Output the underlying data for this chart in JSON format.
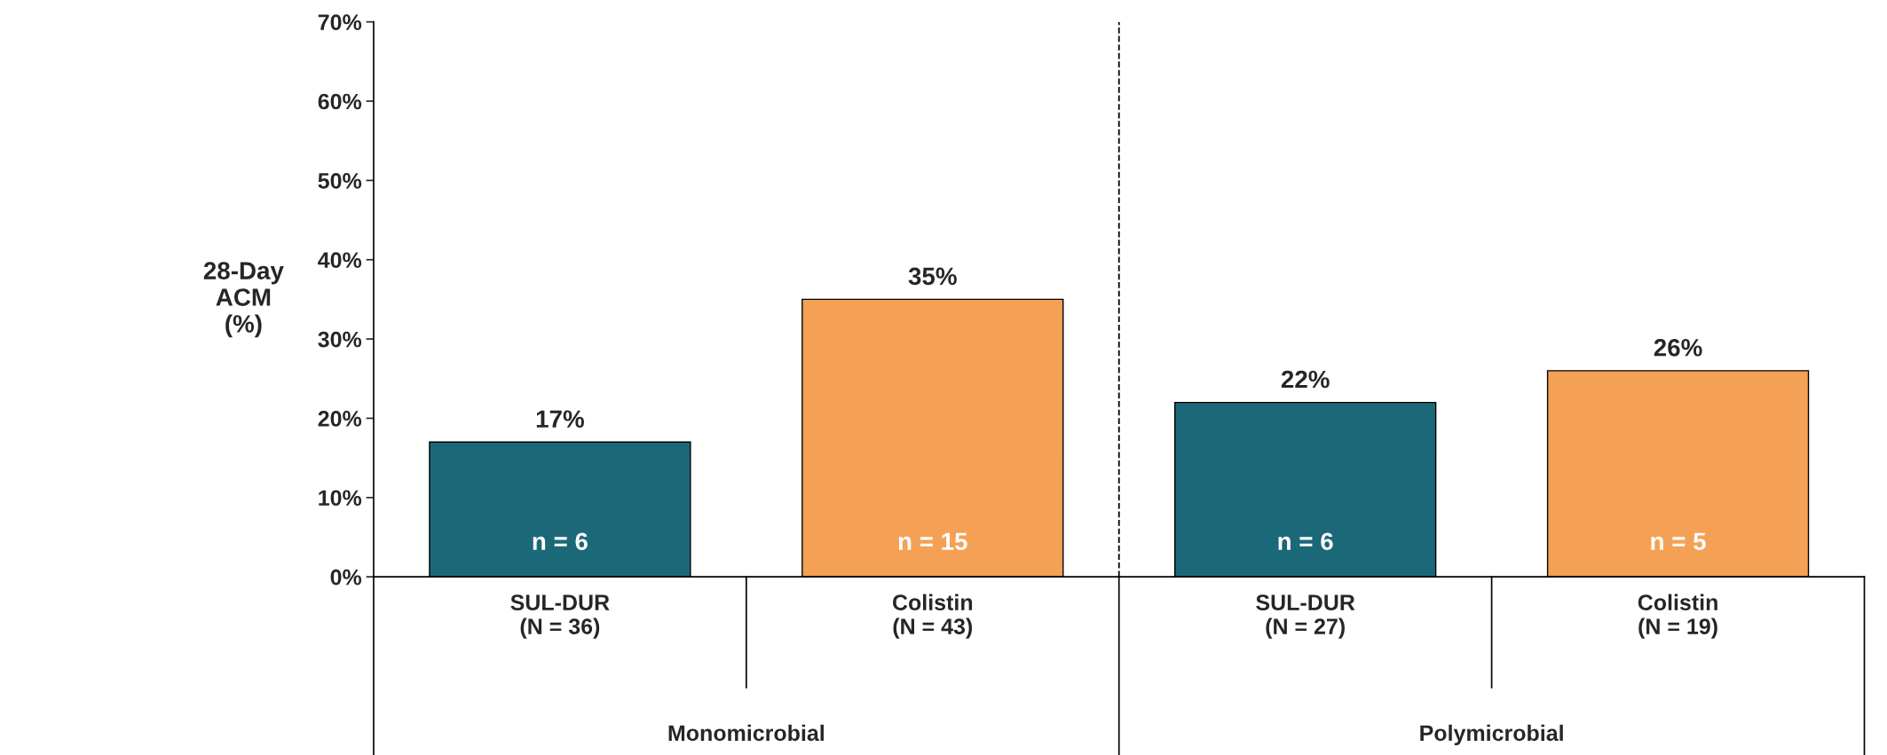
{
  "chart_data": {
    "type": "bar",
    "ylabel": "28-Day\nACM\n(%)",
    "categories": [
      "SUL-DUR\n(N = 36)",
      "Colistin\n(N = 43)",
      "SUL-DUR\n(N = 27)",
      "Colistin\n(N = 19)"
    ],
    "values": [
      17,
      35,
      22,
      26
    ],
    "colors": [
      "#1b6878",
      "#f4a155",
      "#1b6878",
      "#f4a155"
    ],
    "value_labels": [
      "17%",
      "35%",
      "22%",
      "26%"
    ],
    "ylim": [
      0,
      70
    ],
    "yticks": [
      {
        "value": 0,
        "label": "0%"
      },
      {
        "value": 10,
        "label": "10%"
      },
      {
        "value": 20,
        "label": "20%"
      },
      {
        "value": 30,
        "label": "30%"
      },
      {
        "value": 40,
        "label": "40%"
      },
      {
        "value": 50,
        "label": "50%"
      },
      {
        "value": 60,
        "label": "60%"
      },
      {
        "value": 70,
        "label": "70%"
      }
    ],
    "annotations": [
      "n = 6",
      "n = 15",
      "n = 6",
      "n = 5",
      "Monomicrobial",
      "Polymicrobial"
    ],
    "grid": false
  }
}
